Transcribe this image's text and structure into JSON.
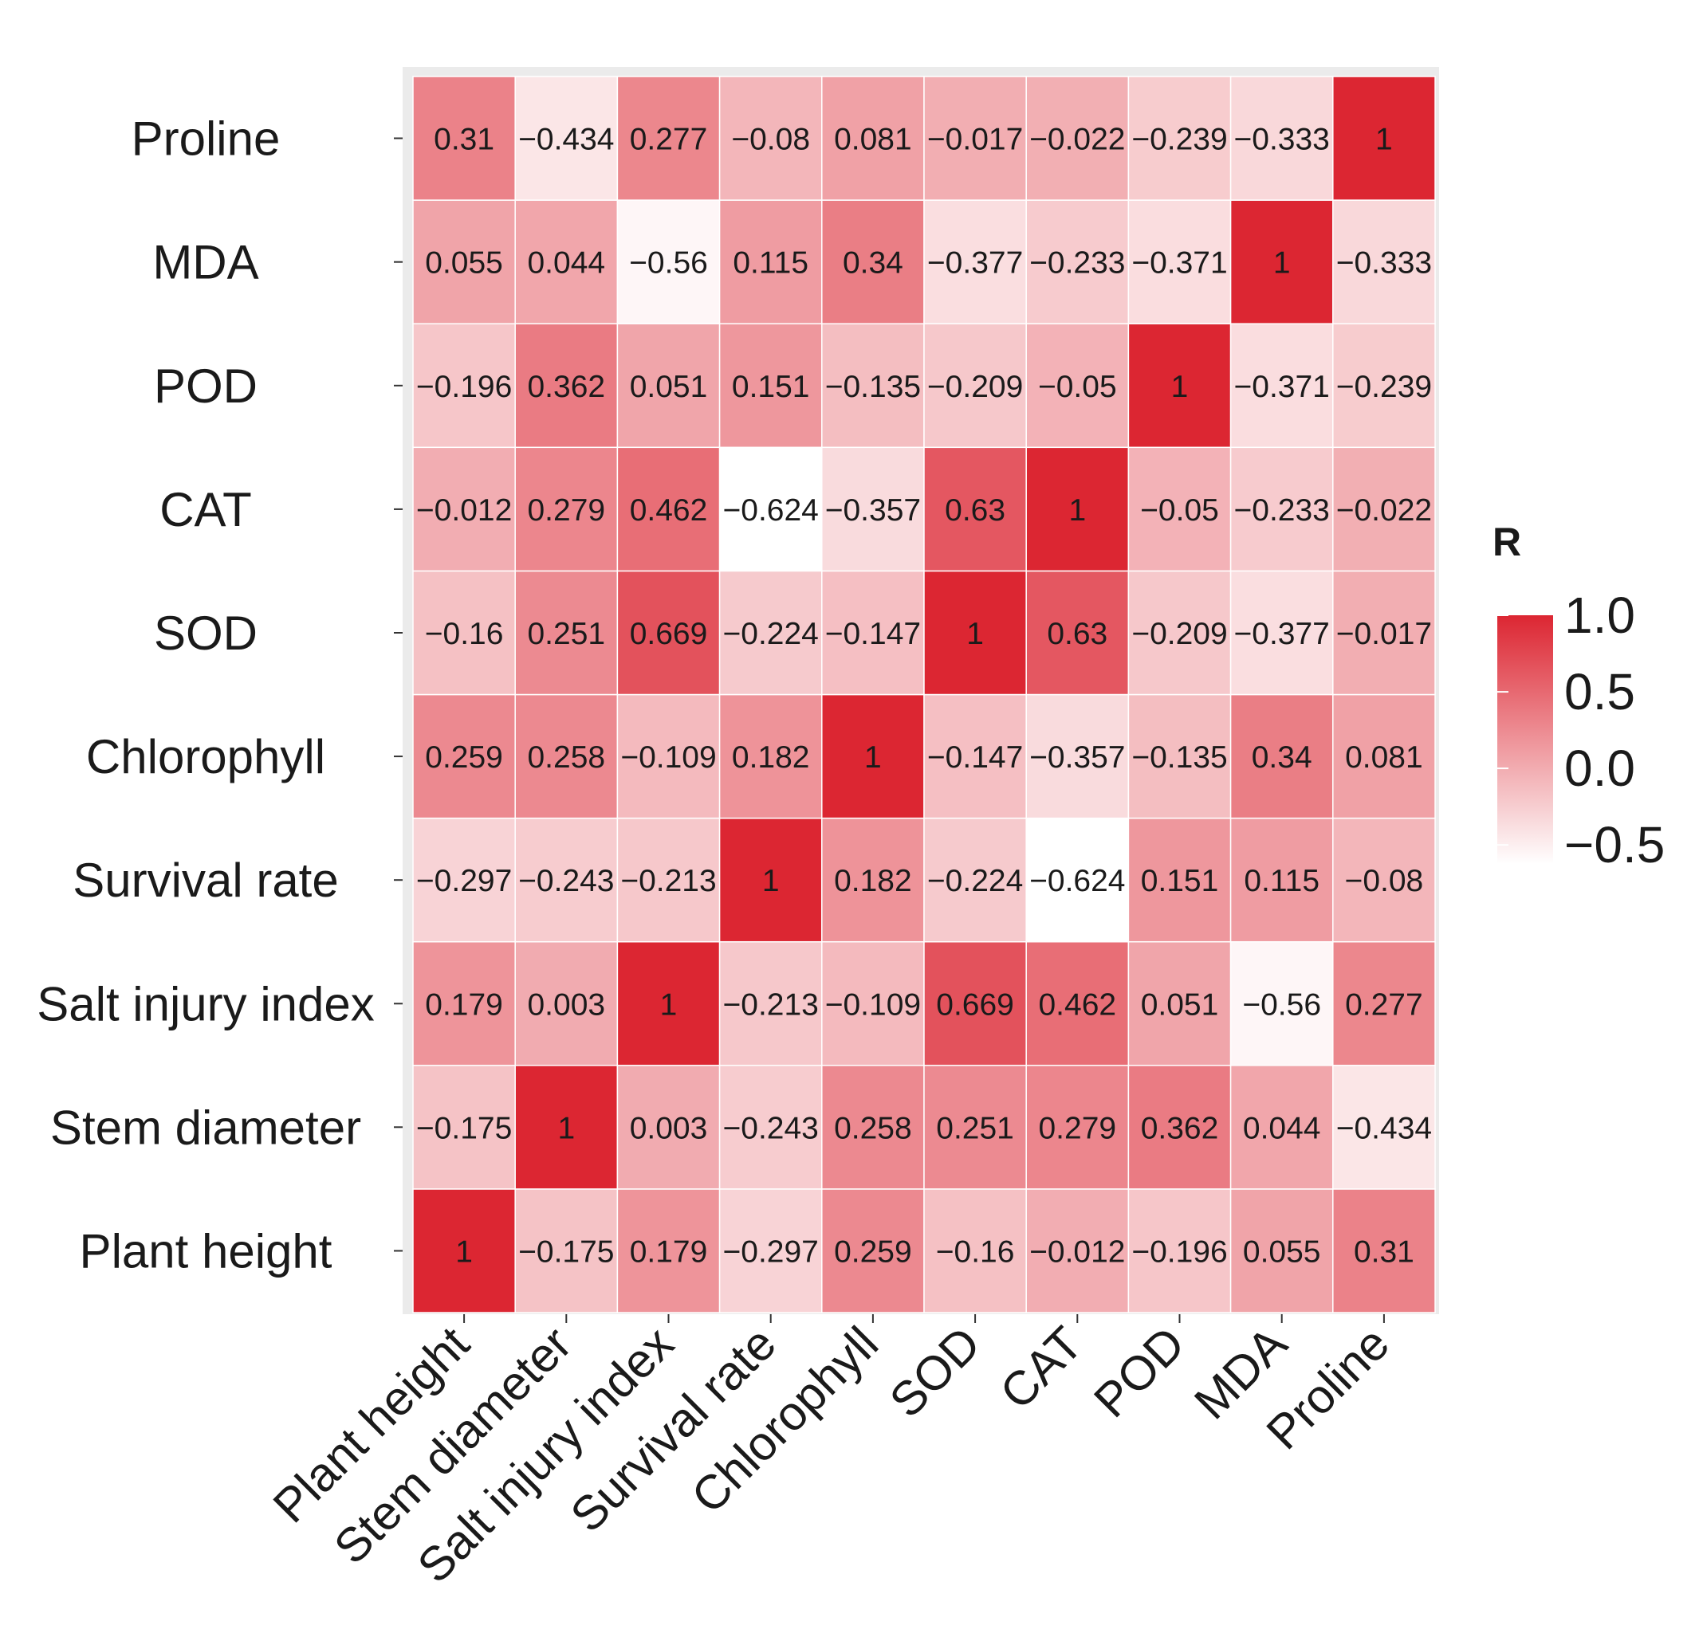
{
  "chart_data": {
    "type": "heatmap",
    "title": "",
    "xlabel": "",
    "ylabel": "",
    "variables": [
      "Plant height",
      "Stem diameter",
      "Salt injury index",
      "Survival rate",
      "Chlorophyll",
      "SOD",
      "CAT",
      "POD",
      "MDA",
      "Proline"
    ],
    "x_categories": [
      "Plant height",
      "Stem diameter",
      "Salt injury index",
      "Survival rate",
      "Chlorophyll",
      "SOD",
      "CAT",
      "POD",
      "MDA",
      "Proline"
    ],
    "y_categories_top_to_bottom": [
      "Proline",
      "MDA",
      "POD",
      "CAT",
      "SOD",
      "Chlorophyll",
      "Survival rate",
      "Salt injury index",
      "Stem diameter",
      "Plant height"
    ],
    "matrix": [
      [
        1,
        -0.175,
        0.179,
        -0.297,
        0.259,
        -0.16,
        -0.012,
        -0.196,
        0.055,
        0.31
      ],
      [
        -0.175,
        1,
        0.003,
        -0.243,
        0.258,
        0.251,
        0.279,
        0.362,
        0.044,
        -0.434
      ],
      [
        0.179,
        0.003,
        1,
        -0.213,
        -0.109,
        0.669,
        0.462,
        0.051,
        -0.56,
        0.277
      ],
      [
        -0.297,
        -0.243,
        -0.213,
        1,
        0.182,
        -0.224,
        -0.624,
        0.151,
        0.115,
        -0.08
      ],
      [
        0.259,
        0.258,
        -0.109,
        0.182,
        1,
        -0.147,
        -0.357,
        -0.135,
        0.34,
        0.081
      ],
      [
        -0.16,
        0.251,
        0.669,
        -0.224,
        -0.147,
        1,
        0.63,
        -0.209,
        -0.377,
        -0.017
      ],
      [
        -0.012,
        0.279,
        0.462,
        -0.624,
        -0.357,
        0.63,
        1,
        -0.05,
        -0.233,
        -0.022
      ],
      [
        -0.196,
        0.362,
        0.051,
        0.151,
        -0.135,
        -0.209,
        -0.05,
        1,
        -0.371,
        -0.239
      ],
      [
        0.055,
        0.044,
        -0.56,
        0.115,
        0.34,
        -0.377,
        -0.233,
        -0.371,
        1,
        -0.333
      ],
      [
        0.31,
        -0.434,
        0.277,
        -0.08,
        0.081,
        -0.017,
        -0.022,
        -0.239,
        -0.333,
        1
      ]
    ],
    "legend": {
      "title": "R",
      "ticks": [
        1.0,
        0.5,
        0.0,
        -0.5
      ],
      "tick_labels": [
        "1.0",
        "0.5",
        "0.0",
        "−0.5"
      ],
      "range": [
        -0.624,
        1.0
      ],
      "placement": "right"
    },
    "colors": {
      "low": "#ffffff",
      "high": "#dc2632",
      "panel_background": "#ebebeb",
      "grid": "#ffffff"
    }
  }
}
